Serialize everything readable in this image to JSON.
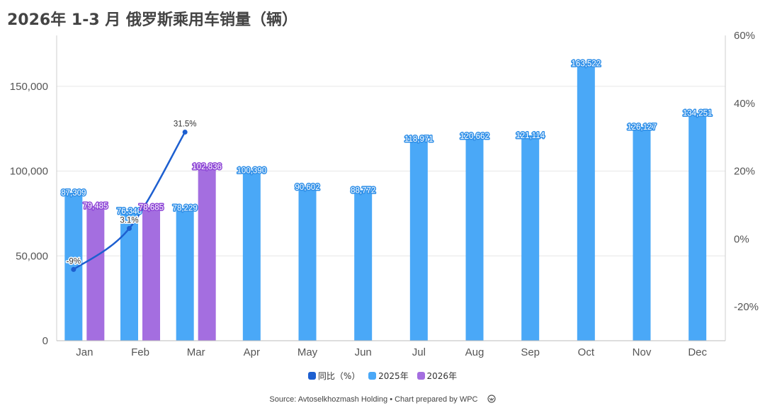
{
  "chart_data": {
    "type": "bar",
    "title": "2026年 1-3 月 俄罗斯乘用车销量（辆）",
    "categories": [
      "Jan",
      "Feb",
      "Mar",
      "Apr",
      "May",
      "Jun",
      "Jul",
      "Aug",
      "Sep",
      "Oct",
      "Nov",
      "Dec"
    ],
    "series": [
      {
        "name": "2025年",
        "type": "bar",
        "color": "#4aa8f7",
        "values": [
          87309,
          76346,
          78229,
          100390,
          90602,
          88772,
          118971,
          120662,
          121114,
          163522,
          126127,
          134251
        ],
        "labels": [
          "87,309",
          "76,346",
          "78,229",
          "100,390",
          "90,602",
          "88,772",
          "118,971",
          "120,662",
          "121,114",
          "163,522",
          "126,127",
          "134,251"
        ]
      },
      {
        "name": "2026年",
        "type": "bar",
        "color": "#a46ee0",
        "values": [
          79485,
          78685,
          102836,
          null,
          null,
          null,
          null,
          null,
          null,
          null,
          null,
          null
        ],
        "labels": [
          "79,485",
          "78,685",
          "102,836",
          "",
          "",
          "",
          "",
          "",
          "",
          "",
          "",
          ""
        ]
      },
      {
        "name": "同比（%）",
        "type": "line",
        "axis": "right",
        "color": "#1d5fd0",
        "values": [
          -9,
          3.1,
          31.5,
          null,
          null,
          null,
          null,
          null,
          null,
          null,
          null,
          null
        ],
        "labels": [
          "-9%",
          "3.1%",
          "31.5%",
          "",
          "",
          "",
          "",
          "",
          "",
          "",
          "",
          ""
        ]
      }
    ],
    "y_left": {
      "min": 0,
      "max": 180000,
      "ticks": [
        0,
        50000,
        100000,
        150000
      ],
      "tick_labels": [
        "0",
        "50,000",
        "100,000",
        "150,000"
      ]
    },
    "y_right": {
      "min": -30,
      "max": 60,
      "ticks": [
        -20,
        0,
        20,
        40,
        60
      ],
      "tick_labels": [
        "-20%",
        "0%",
        "20%",
        "40%",
        "60%"
      ]
    },
    "grid": true,
    "legend_position": "bottom"
  },
  "legend": [
    {
      "label": "同比（%）",
      "color": "#1d5fd0"
    },
    {
      "label": "2025年",
      "color": "#4aa8f7"
    },
    {
      "label": "2026年",
      "color": "#a46ee0"
    }
  ],
  "source": "Source: Avtoselkhozmash Holding • Chart prepared by WPC"
}
